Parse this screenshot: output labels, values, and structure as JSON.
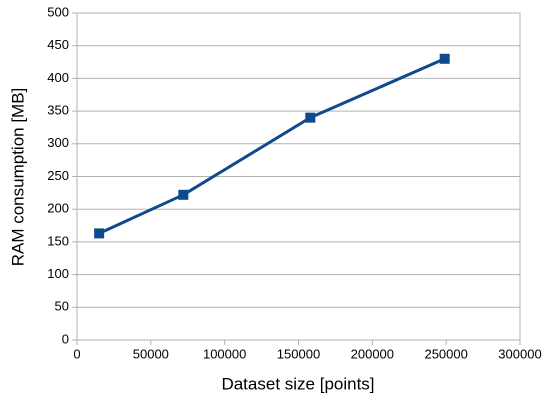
{
  "chart_data": {
    "type": "line",
    "x_label": "Dataset size [points]",
    "y_label": "RAM consumption [MB]",
    "x": [
      15000,
      72000,
      158000,
      249000
    ],
    "values": [
      163,
      222,
      340,
      430
    ],
    "color": "#0e4a8c",
    "marker": "square",
    "xlim": [
      0,
      300000
    ],
    "xticks": [
      0,
      50000,
      100000,
      150000,
      200000,
      250000,
      300000
    ],
    "ylim": [
      0,
      500
    ],
    "yticks": [
      0,
      50,
      100,
      150,
      200,
      250,
      300,
      350,
      400,
      450,
      500
    ],
    "grid": true
  }
}
